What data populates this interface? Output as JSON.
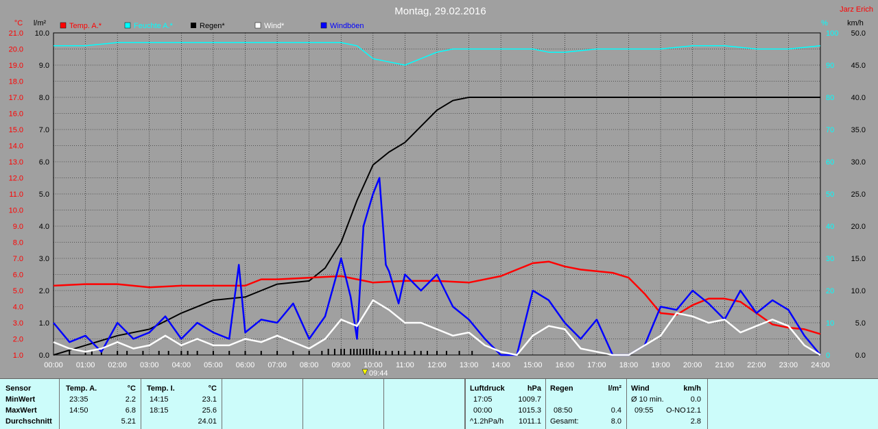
{
  "title": "Montag, 29.02.2016",
  "author": "Jarz Erich",
  "units": {
    "temp": "°C",
    "rain": "l/m²",
    "humidity": "%",
    "wind": "km/h"
  },
  "legend": [
    {
      "label": "Temp. A.*",
      "color": "#ff0000"
    },
    {
      "label": "Feuchte A.*",
      "color": "#00ffff"
    },
    {
      "label": "Regen*",
      "color": "#000000"
    },
    {
      "label": "Wind*",
      "color": "#ffffff"
    },
    {
      "label": "Windböen",
      "color": "#0000ff"
    }
  ],
  "marker_label": "09:44",
  "chart_data": {
    "type": "line",
    "title": "Montag, 29.02.2016",
    "x_ticks": [
      "00:00",
      "01:00",
      "02:00",
      "03:00",
      "04:00",
      "05:00",
      "06:00",
      "07:00",
      "08:00",
      "09:00",
      "10:00",
      "11:00",
      "12:00",
      "13:00",
      "14:00",
      "15:00",
      "16:00",
      "17:00",
      "18:00",
      "19:00",
      "20:00",
      "21:00",
      "22:00",
      "23:00",
      "24:00"
    ],
    "axes": {
      "temp": {
        "label": "°C",
        "range": [
          1.0,
          21.0
        ],
        "ticks": [
          "21.0",
          "20.0",
          "19.0",
          "18.0",
          "17.0",
          "16.0",
          "15.0",
          "14.0",
          "13.0",
          "12.0",
          "11.0",
          "10.0",
          "9.0",
          "8.0",
          "7.0",
          "6.0",
          "5.0",
          "4.0",
          "3.0",
          "2.0",
          "1.0"
        ]
      },
      "rain": {
        "label": "l/m²",
        "range": [
          0.0,
          10.0
        ],
        "ticks": [
          "10.0",
          "9.0",
          "8.0",
          "7.0",
          "6.0",
          "5.0",
          "4.0",
          "3.0",
          "2.0",
          "1.0",
          "0.0"
        ]
      },
      "humidity": {
        "label": "%",
        "range": [
          0,
          100
        ],
        "ticks": [
          "100",
          "90",
          "80",
          "70",
          "60",
          "50",
          "40",
          "30",
          "20",
          "10",
          "0"
        ]
      },
      "wind": {
        "label": "km/h",
        "range": [
          0.0,
          50.0
        ],
        "ticks": [
          "50.0",
          "45.0",
          "40.0",
          "35.0",
          "30.0",
          "25.0",
          "20.0",
          "15.0",
          "10.0",
          "5.0",
          "0.0"
        ]
      }
    },
    "series": [
      {
        "name": "Temp. A.*",
        "axis": "temp",
        "color": "#ff0000",
        "x": [
          0,
          1,
          2,
          3,
          4,
          5,
          6,
          6.5,
          7,
          8,
          9,
          10,
          11,
          12,
          13,
          14,
          14.5,
          15,
          15.5,
          16,
          16.5,
          17,
          17.5,
          18,
          18.5,
          19,
          19.5,
          20,
          20.5,
          21,
          21.5,
          22,
          22.5,
          23,
          23.5,
          24
        ],
        "y": [
          5.3,
          5.4,
          5.4,
          5.2,
          5.3,
          5.3,
          5.3,
          5.7,
          5.7,
          5.8,
          5.9,
          5.5,
          5.6,
          5.6,
          5.5,
          5.9,
          6.3,
          6.7,
          6.8,
          6.5,
          6.3,
          6.2,
          6.1,
          5.8,
          4.8,
          3.6,
          3.5,
          4.1,
          4.5,
          4.5,
          4.3,
          3.6,
          2.9,
          2.7,
          2.6,
          2.3
        ]
      },
      {
        "name": "Feuchte A.*",
        "axis": "humidity",
        "color": "#00ffff",
        "x": [
          0,
          1,
          2,
          3,
          4,
          5,
          6,
          7,
          8,
          9,
          9.5,
          10,
          10.5,
          11,
          11.5,
          12,
          12.5,
          13,
          14,
          15,
          15.5,
          16,
          17,
          18,
          19,
          20,
          21,
          22,
          23,
          24
        ],
        "y": [
          96,
          96,
          97,
          97,
          97,
          97,
          97,
          97,
          97,
          97,
          96,
          92,
          91,
          90,
          92,
          94,
          95,
          95,
          95,
          95,
          94,
          94,
          95,
          95,
          95,
          96,
          96,
          95,
          95,
          96
        ]
      },
      {
        "name": "Regen*",
        "axis": "rain",
        "color": "#000000",
        "x": [
          0,
          1,
          2,
          3,
          4,
          5,
          6,
          6.5,
          7,
          8,
          8.5,
          9,
          9.5,
          10,
          10.5,
          11,
          11.5,
          12,
          12.5,
          13,
          13.5,
          14,
          24
        ],
        "y": [
          0.0,
          0.3,
          0.6,
          0.8,
          1.3,
          1.7,
          1.8,
          2.0,
          2.2,
          2.3,
          2.7,
          3.5,
          4.8,
          5.9,
          6.3,
          6.6,
          7.1,
          7.6,
          7.9,
          8.0,
          8.0,
          8.0,
          8.0
        ]
      },
      {
        "name": "Wind*",
        "axis": "wind",
        "color": "#ffffff",
        "x": [
          0,
          0.5,
          1,
          1.5,
          2,
          2.5,
          3,
          3.5,
          4,
          4.5,
          5,
          5.5,
          6,
          6.5,
          7,
          7.5,
          8,
          8.5,
          9,
          9.5,
          10,
          10.5,
          11,
          11.5,
          12,
          12.5,
          13,
          13.5,
          14,
          14.5,
          15,
          15.5,
          16,
          16.5,
          17,
          17.5,
          18,
          18.5,
          19,
          19.5,
          20,
          20.5,
          21,
          21.5,
          22,
          22.5,
          23,
          23.5,
          24
        ],
        "y": [
          2.0,
          1.0,
          0.5,
          1.0,
          2.0,
          1.0,
          1.5,
          3.0,
          1.5,
          2.5,
          1.5,
          1.5,
          2.5,
          2.0,
          3.0,
          2.0,
          1.0,
          2.5,
          5.5,
          4.5,
          8.5,
          7.0,
          5.0,
          5.0,
          4.0,
          3.0,
          3.5,
          1.5,
          0.5,
          0.0,
          3.0,
          4.5,
          4.0,
          1.0,
          0.5,
          0.0,
          0.0,
          1.5,
          3.0,
          6.5,
          6.0,
          5.0,
          5.5,
          3.5,
          4.5,
          5.5,
          4.5,
          1.5,
          0.0
        ]
      },
      {
        "name": "Windböen",
        "axis": "wind",
        "color": "#0000ff",
        "x": [
          0,
          0.5,
          1,
          1.5,
          2,
          2.5,
          3,
          3.5,
          4,
          4.5,
          5,
          5.5,
          5.8,
          6,
          6.5,
          7,
          7.5,
          8,
          8.5,
          9,
          9.3,
          9.5,
          9.7,
          10,
          10.2,
          10.4,
          10.5,
          10.8,
          11,
          11.5,
          12,
          12.5,
          13,
          13.5,
          14,
          14.5,
          15,
          15.5,
          16,
          16.5,
          17,
          17.5,
          18,
          18.5,
          19,
          19.5,
          20,
          20.5,
          21,
          21.5,
          22,
          22.5,
          23,
          23.5,
          24
        ],
        "y": [
          5.0,
          2.0,
          3.0,
          0.5,
          5.0,
          2.5,
          3.5,
          6.0,
          2.5,
          5.0,
          3.5,
          2.5,
          14.0,
          3.5,
          5.5,
          5.0,
          8.0,
          2.5,
          6.0,
          15.0,
          9.0,
          2.5,
          20.0,
          25.0,
          27.5,
          14.0,
          13.0,
          8.0,
          12.5,
          10.0,
          12.5,
          7.5,
          5.5,
          2.5,
          0.0,
          0.0,
          10.0,
          8.5,
          5.0,
          2.5,
          5.5,
          0.0,
          0.0,
          1.5,
          7.5,
          7.0,
          10.0,
          8.0,
          5.5,
          10.0,
          6.5,
          8.5,
          7.0,
          3.0,
          0.0
        ]
      }
    ],
    "rain_ticks_x": [
      0.5,
      1,
      1.2,
      1.5,
      2,
      2.3,
      2.8,
      3.3,
      3.6,
      4,
      4.2,
      4.5,
      5,
      5.5,
      6,
      6.5,
      7,
      7.5,
      8,
      8.4,
      8.6,
      8.8,
      9.0,
      9.1,
      9.3,
      9.4,
      9.5,
      9.6,
      9.7,
      9.8,
      9.9,
      10.0,
      10.1,
      10.2,
      10.4,
      10.6,
      10.8,
      11.0,
      11.3,
      11.5,
      11.7,
      12.0,
      12.3,
      12.7,
      13.1
    ]
  },
  "panel": {
    "sensor": {
      "header": "Sensor",
      "rows": [
        "MinWert",
        "MaxWert",
        "Durchschnitt"
      ]
    },
    "temp_a": {
      "header": "Temp. A.",
      "unit": "°C",
      "rows": [
        [
          "23:35",
          "2.2"
        ],
        [
          "14:50",
          "6.8"
        ],
        [
          "",
          "5.21"
        ]
      ]
    },
    "temp_i": {
      "header": "Temp. I.",
      "unit": "°C",
      "rows": [
        [
          "14:15",
          "23.1"
        ],
        [
          "18:15",
          "25.6"
        ],
        [
          "",
          "24.01"
        ]
      ]
    },
    "luftdruck": {
      "header": "Luftdruck",
      "unit": "hPa",
      "rows": [
        [
          "17:05",
          "1009.7"
        ],
        [
          "00:00",
          "1015.3"
        ],
        [
          "^1.2hPa/h",
          "1011.1"
        ]
      ]
    },
    "regen": {
      "header": "Regen",
      "unit": "l/m²",
      "rows": [
        [
          "",
          ""
        ],
        [
          "08:50",
          "0.4"
        ],
        [
          "Gesamt:",
          "8.0"
        ]
      ]
    },
    "wind": {
      "header": "Wind",
      "unit": "km/h",
      "rows": [
        [
          "Ø 10 min.",
          "",
          "0.0"
        ],
        [
          "09:55",
          "O-NO",
          "12.1"
        ],
        [
          "",
          "",
          "2.8"
        ]
      ]
    }
  }
}
